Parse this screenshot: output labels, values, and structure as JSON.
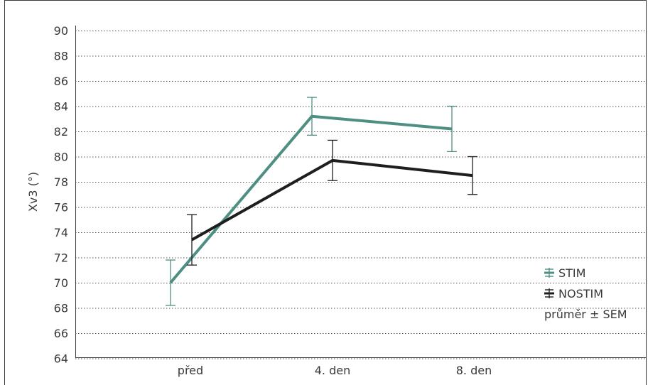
{
  "chart_data": {
    "type": "line",
    "title": "",
    "xlabel": "",
    "ylabel": "Xv3 (°)",
    "categories": [
      "před",
      "4. den",
      "8. den"
    ],
    "ylim": [
      62,
      90
    ],
    "yticks": [
      64,
      66,
      68,
      70,
      72,
      74,
      76,
      78,
      80,
      82,
      84,
      86,
      88,
      90
    ],
    "grid": "horizontal-dotted",
    "legend_position": "bottom-right",
    "legend_note": "průměr ± SEM",
    "series": [
      {
        "name": "STIM",
        "color": "#4e8f84",
        "values": [
          70.0,
          83.2,
          82.2
        ],
        "sem": [
          1.8,
          1.5,
          1.8
        ]
      },
      {
        "name": "NOSTIM",
        "color": "#1e1e1e",
        "values": [
          73.4,
          79.7,
          78.5
        ],
        "sem": [
          2.0,
          1.6,
          1.5
        ]
      }
    ]
  }
}
